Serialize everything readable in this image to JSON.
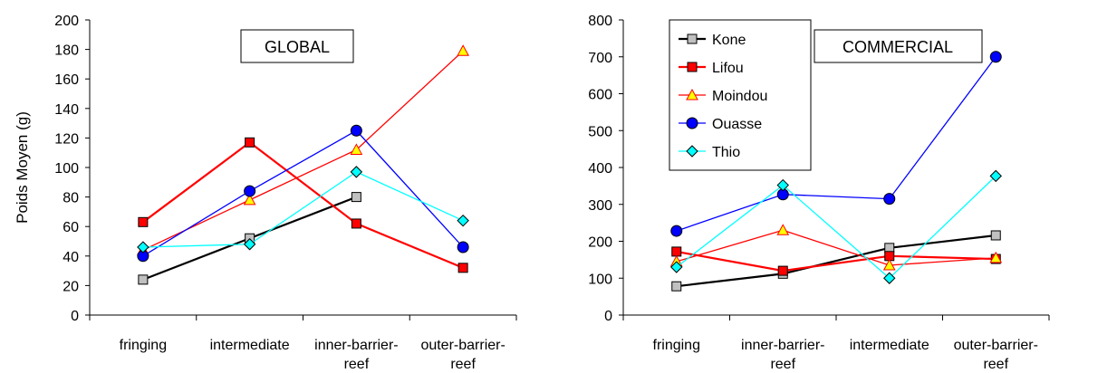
{
  "chart_data": [
    {
      "type": "line",
      "title": "GLOBAL",
      "ylabel": "Poids Moyen (g)",
      "xlabel": "",
      "categories": [
        "fringing",
        "intermediate",
        "inner-barrier-reef",
        "outer-barrier-reef"
      ],
      "category_lines": [
        [
          "fringing"
        ],
        [
          "intermediate"
        ],
        [
          "inner-barrier-",
          "reef"
        ],
        [
          "outer-barrier-",
          "reef"
        ]
      ],
      "ylim": [
        0,
        200
      ],
      "yticks": [
        "0",
        "20",
        "40",
        "60",
        "80",
        "100",
        "120",
        "140",
        "160",
        "180",
        "200"
      ],
      "grid": false,
      "legend": false,
      "series": [
        {
          "name": "Kone",
          "values": [
            24,
            52,
            80,
            null
          ]
        },
        {
          "name": "Lifou",
          "values": [
            63,
            117,
            62,
            32
          ]
        },
        {
          "name": "Moindou",
          "values": [
            44,
            78,
            112,
            179
          ]
        },
        {
          "name": "Ouasse",
          "values": [
            40,
            84,
            125,
            46
          ]
        },
        {
          "name": "Thio",
          "values": [
            46,
            48,
            97,
            64
          ]
        }
      ]
    },
    {
      "type": "line",
      "title": "COMMERCIAL",
      "ylabel": "",
      "xlabel": "",
      "categories": [
        "fringing",
        "inner-barrier-reef",
        "intermediate",
        "outer-barrier-reef"
      ],
      "category_lines": [
        [
          "fringing"
        ],
        [
          "inner-barrier-",
          "reef"
        ],
        [
          "intermediate"
        ],
        [
          "outer-barrier-",
          "reef"
        ]
      ],
      "ylim": [
        0,
        800
      ],
      "yticks": [
        "0",
        "100",
        "200",
        "300",
        "400",
        "500",
        "600",
        "700",
        "800"
      ],
      "grid": false,
      "legend": "top-left",
      "series": [
        {
          "name": "Kone",
          "values": [
            78,
            112,
            182,
            216
          ]
        },
        {
          "name": "Lifou",
          "values": [
            172,
            120,
            160,
            152
          ]
        },
        {
          "name": "Moindou",
          "values": [
            145,
            230,
            135,
            155
          ]
        },
        {
          "name": "Ouasse",
          "values": [
            228,
            327,
            315,
            700
          ]
        },
        {
          "name": "Thio",
          "values": [
            130,
            352,
            100,
            377
          ]
        }
      ]
    }
  ],
  "styles": {
    "Kone": {
      "color": "#000000",
      "marker": "square",
      "fill": "#c0c0c0"
    },
    "Lifou": {
      "color": "#ff0000",
      "marker": "square",
      "fill": "#ff0000"
    },
    "Moindou": {
      "color": "#ff0000",
      "marker": "triangle",
      "fill": "#ffff00"
    },
    "Ouasse": {
      "color": "#0000ff",
      "marker": "circle",
      "fill": "#0000ff"
    },
    "Thio": {
      "color": "#00ffff",
      "marker": "diamond",
      "fill": "#00ffff"
    }
  }
}
